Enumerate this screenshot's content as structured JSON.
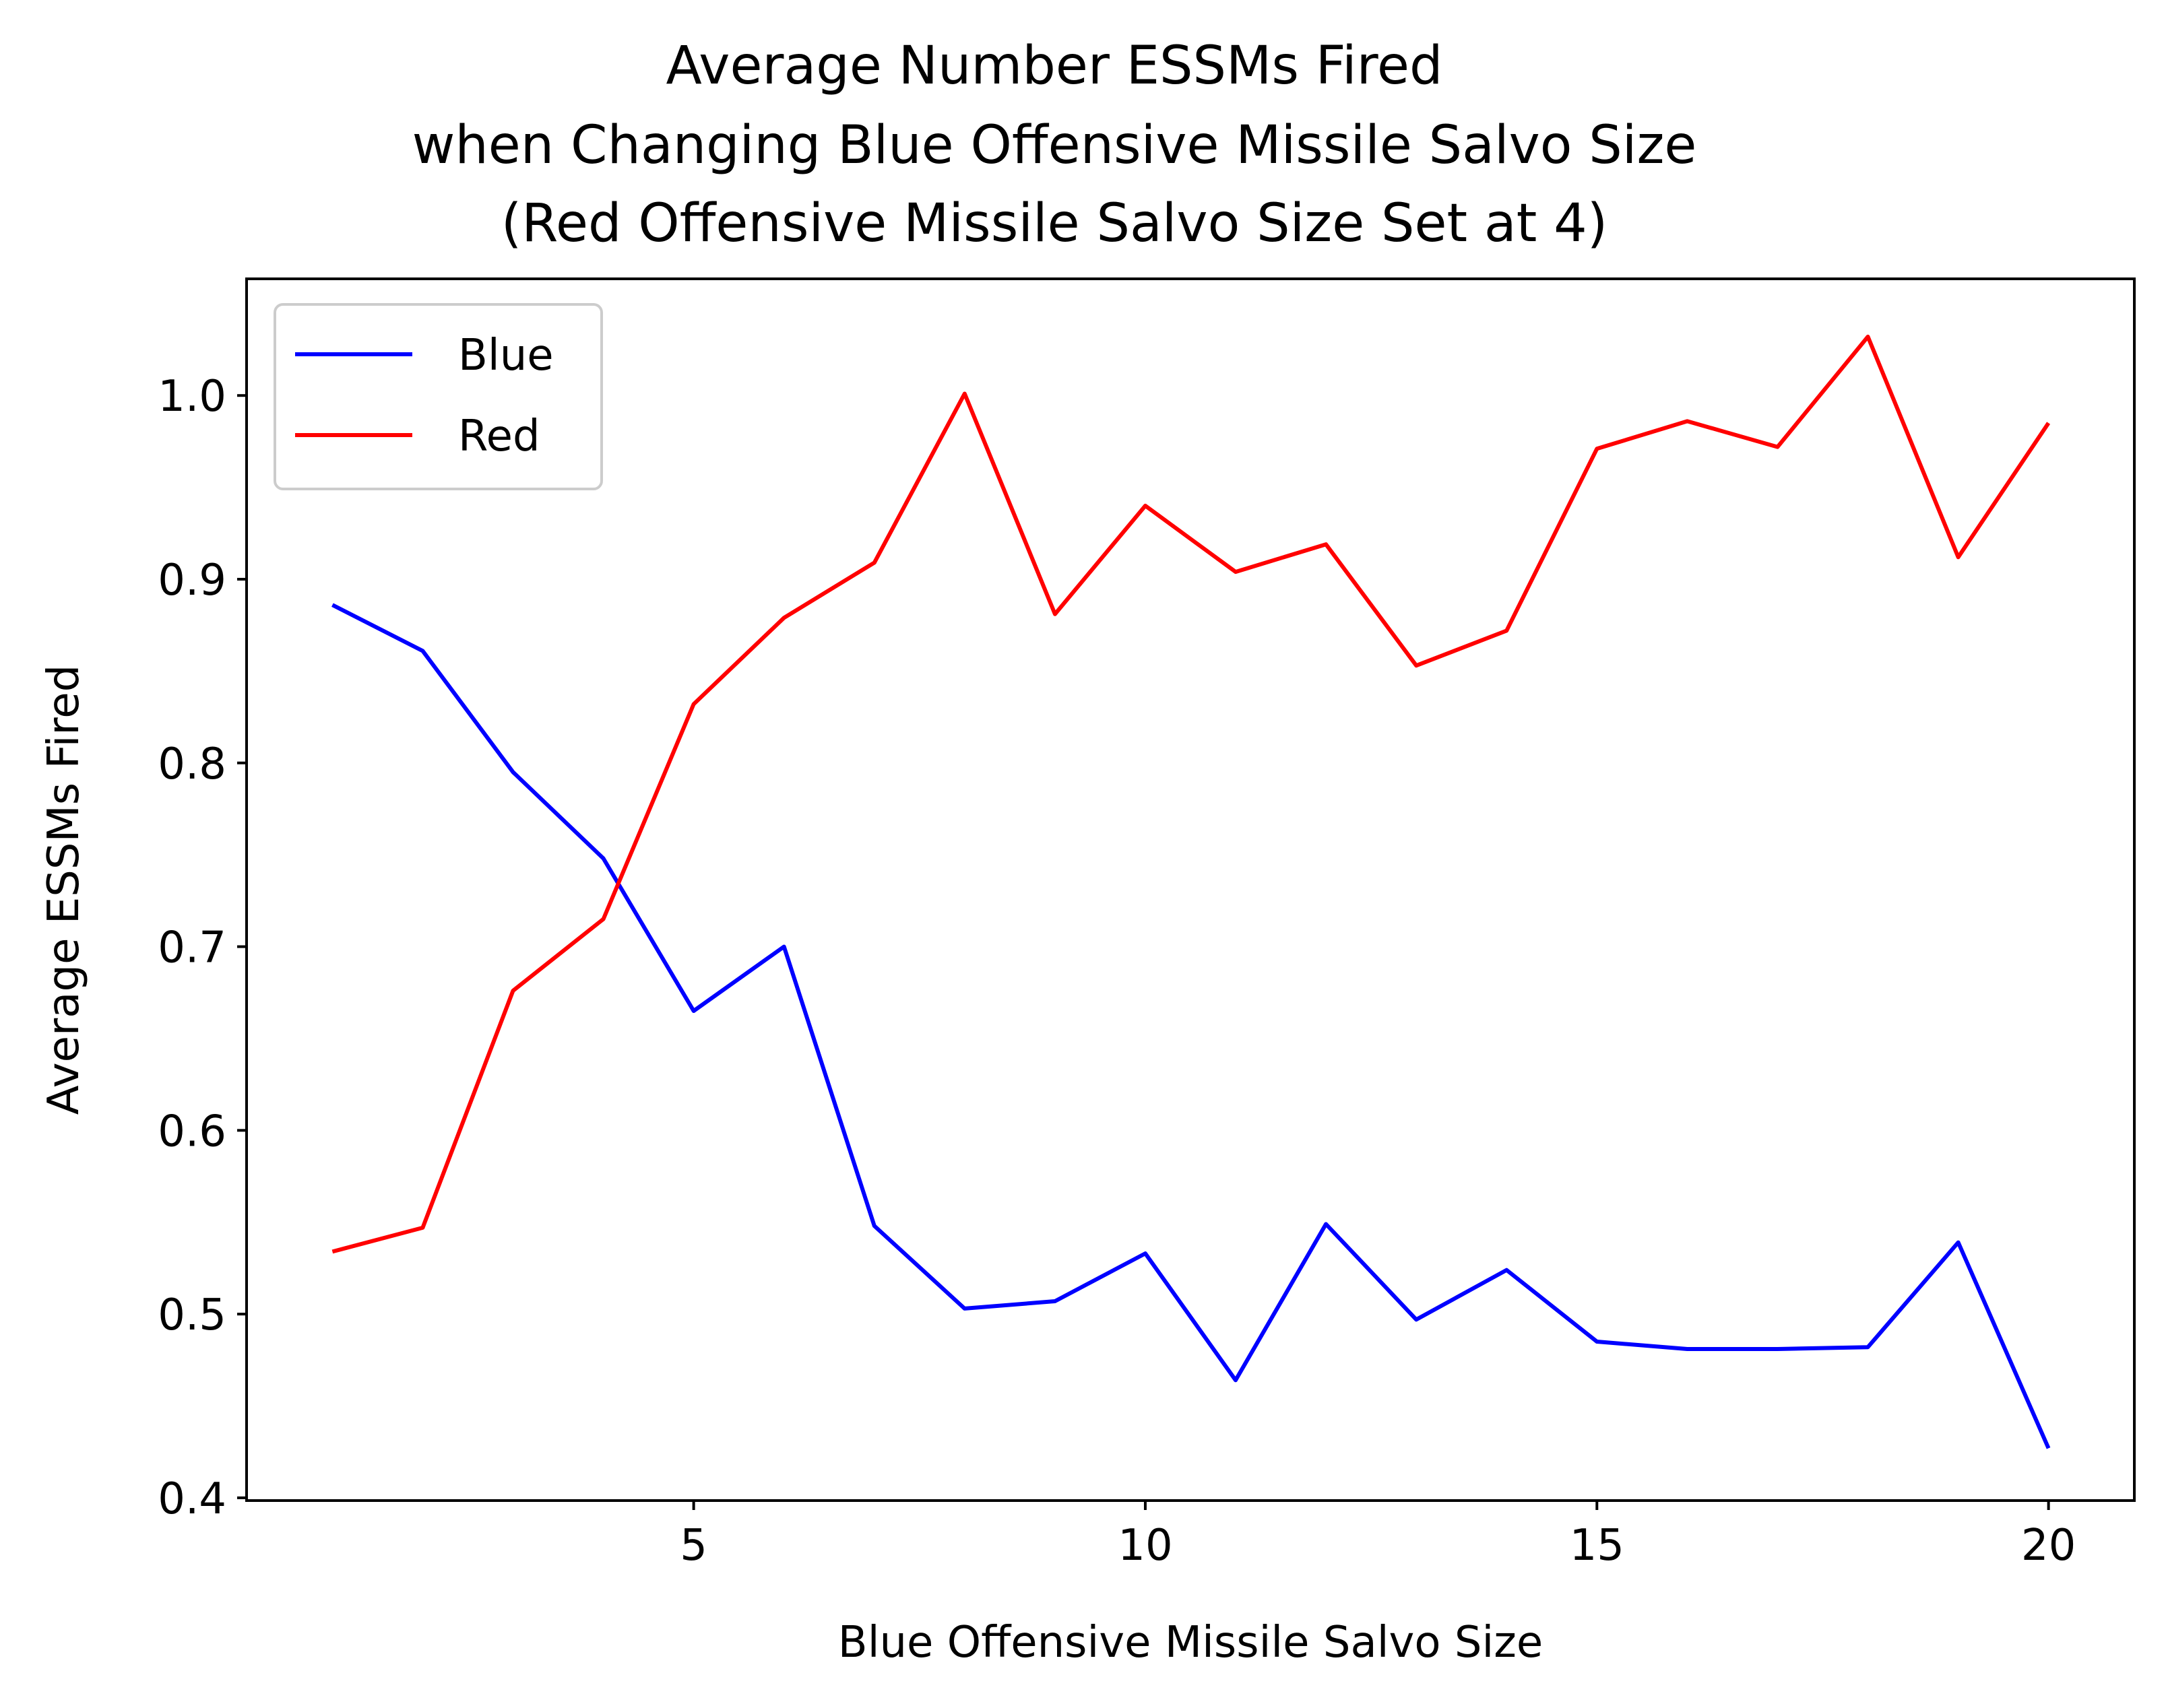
{
  "chart_data": {
    "type": "line",
    "title_lines": [
      "Average Number ESSMs Fired",
      "when Changing Blue Offensive Missile Salvo Size",
      "(Red Offensive Missile Salvo Size Set at 4)"
    ],
    "xlabel": "Blue Offensive Missile Salvo Size",
    "ylabel": "Average ESSMs Fired",
    "x": [
      1,
      2,
      3,
      4,
      5,
      6,
      7,
      8,
      9,
      10,
      11,
      12,
      13,
      14,
      15,
      16,
      17,
      18,
      19,
      20
    ],
    "series": [
      {
        "name": "Blue",
        "color": "#0000ff",
        "values": [
          0.886,
          0.861,
          0.795,
          0.748,
          0.665,
          0.7,
          0.548,
          0.503,
          0.507,
          0.533,
          0.464,
          0.549,
          0.497,
          0.524,
          0.485,
          0.481,
          0.481,
          0.482,
          0.539,
          0.427
        ]
      },
      {
        "name": "Red",
        "color": "#ff0000",
        "values": [
          0.534,
          0.547,
          0.676,
          0.715,
          0.832,
          0.879,
          0.909,
          1.001,
          0.881,
          0.94,
          0.904,
          0.919,
          0.853,
          0.872,
          0.971,
          0.986,
          0.972,
          1.032,
          0.912,
          0.985
        ]
      }
    ],
    "xlim": [
      0.05,
      20.95
    ],
    "ylim": [
      0.3985,
      1.0635
    ],
    "xticks": [
      5,
      10,
      15,
      20
    ],
    "xtick_labels": [
      "5",
      "10",
      "15",
      "20"
    ],
    "yticks": [
      0.4,
      0.5,
      0.6,
      0.7,
      0.8,
      0.9,
      1.0
    ],
    "ytick_labels": [
      "0.4",
      "0.5",
      "0.6",
      "0.7",
      "0.8",
      "0.9",
      "1.0"
    ],
    "grid": false,
    "legend_position": "upper-left"
  }
}
